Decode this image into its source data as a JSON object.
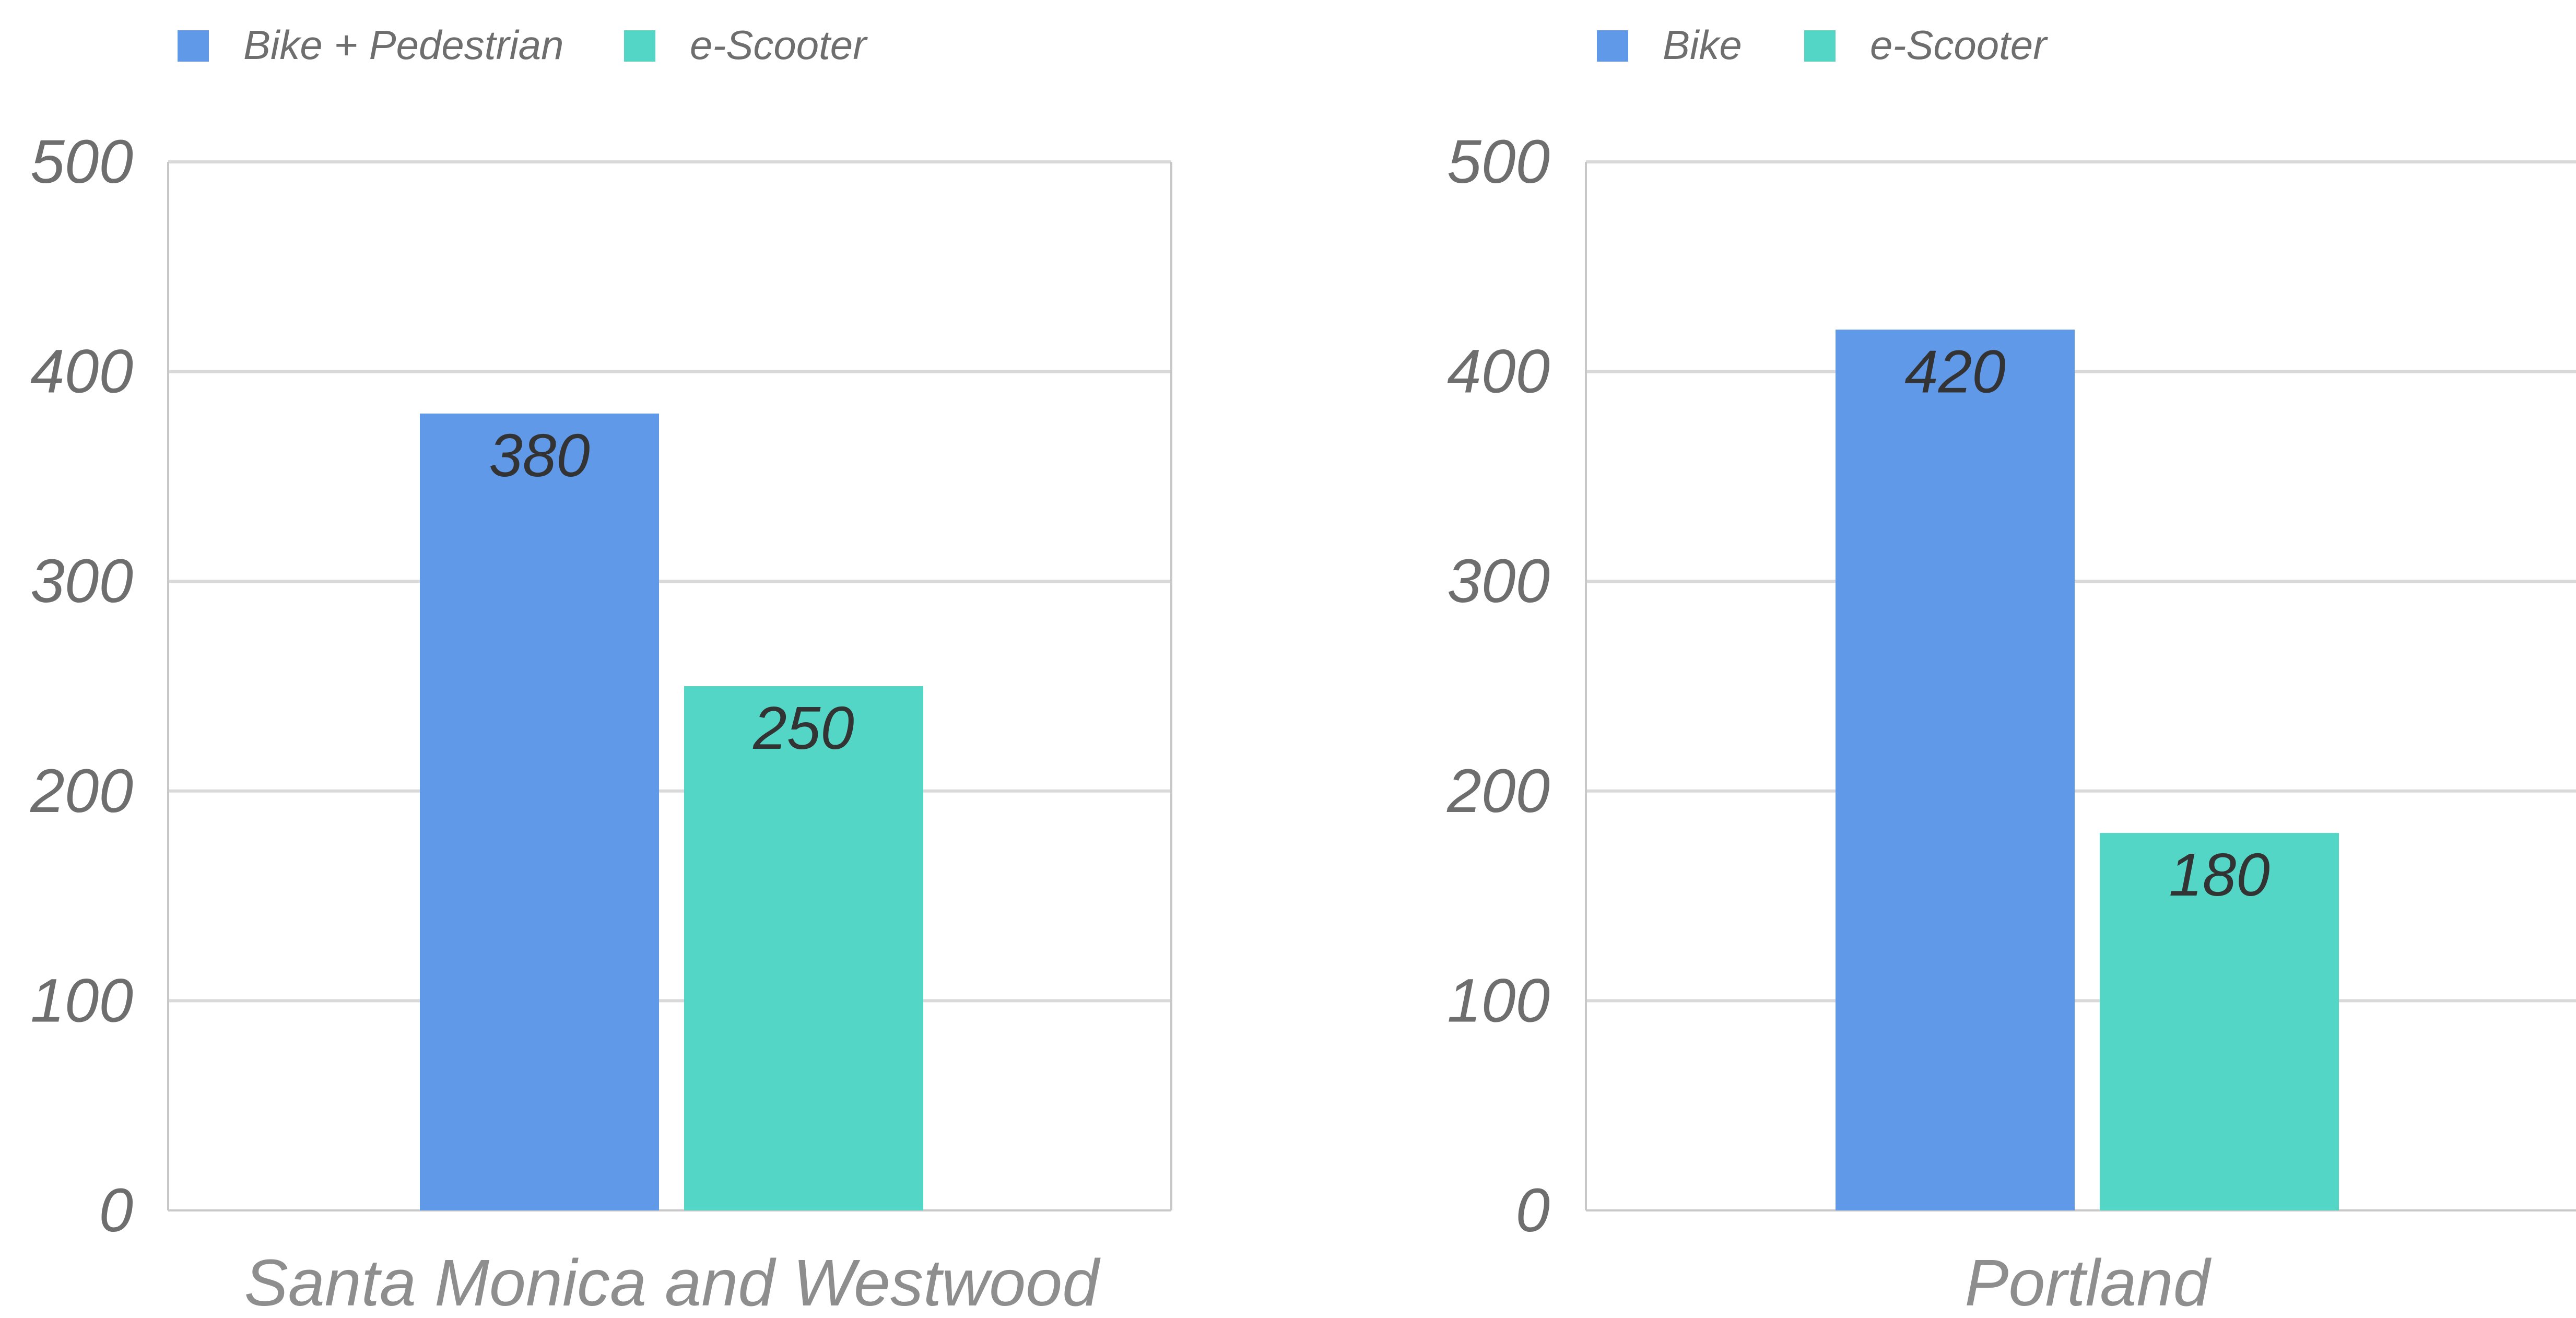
{
  "chart_data": [
    {
      "type": "bar",
      "categories": [
        "Santa Monica and Westwood"
      ],
      "series": [
        {
          "name": "Bike + Pedestrian",
          "color": "#5f99e8",
          "values": [
            380
          ]
        },
        {
          "name": "e-Scooter",
          "color": "#54d6c6",
          "values": [
            250
          ]
        }
      ],
      "ylim": [
        0,
        500
      ],
      "yticks": [
        "0",
        "100",
        "200",
        "300",
        "400",
        "500"
      ],
      "grid": true,
      "legend": "top-left"
    },
    {
      "type": "bar",
      "categories": [
        "Portland"
      ],
      "series": [
        {
          "name": "Bike",
          "color": "#5f99e8",
          "values": [
            420
          ]
        },
        {
          "name": "e-Scooter",
          "color": "#54d6c6",
          "values": [
            180
          ]
        }
      ],
      "ylim": [
        0,
        500
      ],
      "yticks": [
        "0",
        "100",
        "200",
        "300",
        "400",
        "500"
      ],
      "grid": true,
      "legend": "top-left"
    }
  ]
}
